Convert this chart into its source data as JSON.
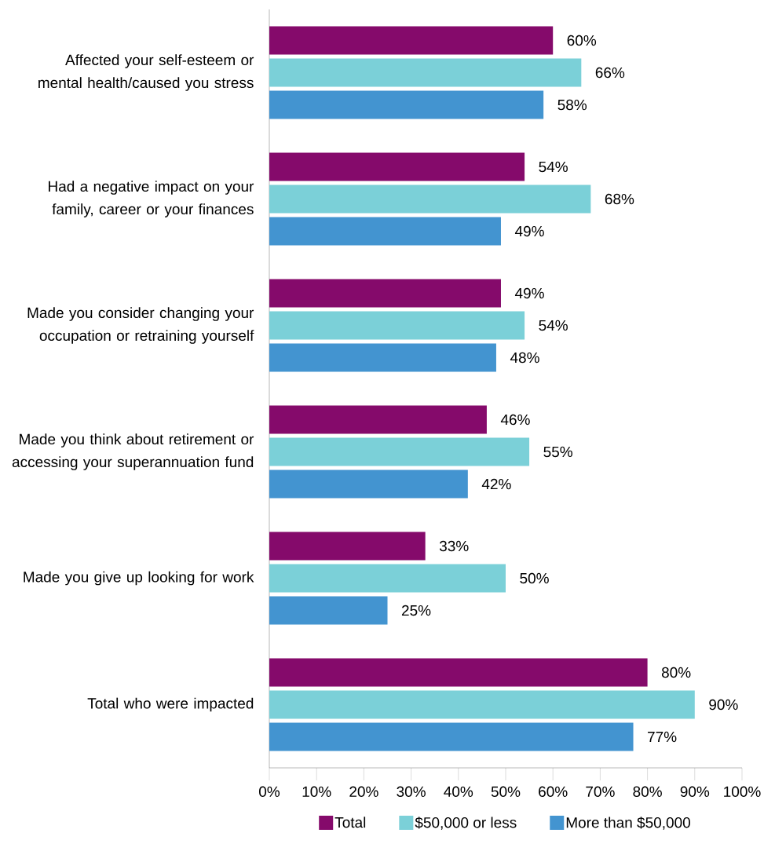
{
  "chart_data": {
    "type": "bar",
    "orientation": "horizontal",
    "categories": [
      "Affected your self-esteem or mental health/caused you stress",
      "Had a negative impact on your family, career or your finances",
      "Made you consider changing your occupation or retraining yourself",
      "Made you think about retirement or accessing your superannuation fund",
      "Made you give up looking for work",
      "Total who were impacted"
    ],
    "series": [
      {
        "name": "Total",
        "color": "#850a6b",
        "values": [
          60,
          54,
          49,
          46,
          33,
          80
        ],
        "value_labels": [
          "60%",
          "54%",
          "49%",
          "46%",
          "33%",
          "80%"
        ]
      },
      {
        "name": "$50,000 or less",
        "color": "#7bd0d8",
        "values": [
          66,
          68,
          54,
          55,
          50,
          90
        ],
        "value_labels": [
          "66%",
          "68%",
          "54%",
          "55%",
          "50%",
          "90%"
        ]
      },
      {
        "name": "More than $50,000",
        "color": "#4394d0",
        "values": [
          58,
          49,
          48,
          42,
          25,
          77
        ],
        "value_labels": [
          "58%",
          "49%",
          "48%",
          "42%",
          "25%",
          "77%"
        ]
      }
    ],
    "xlim": [
      0,
      100
    ],
    "xticks": [
      {
        "value": 0,
        "label": "0%"
      },
      {
        "value": 10,
        "label": "10%"
      },
      {
        "value": 20,
        "label": "20%"
      },
      {
        "value": 30,
        "label": "30%"
      },
      {
        "value": 40,
        "label": "40%"
      },
      {
        "value": 50,
        "label": "50%"
      },
      {
        "value": 60,
        "label": "60%"
      },
      {
        "value": 70,
        "label": "70%"
      },
      {
        "value": 80,
        "label": "80%"
      },
      {
        "value": 90,
        "label": "90%"
      },
      {
        "value": 100,
        "label": "100%"
      }
    ],
    "grid": false,
    "legend": "bottom"
  }
}
